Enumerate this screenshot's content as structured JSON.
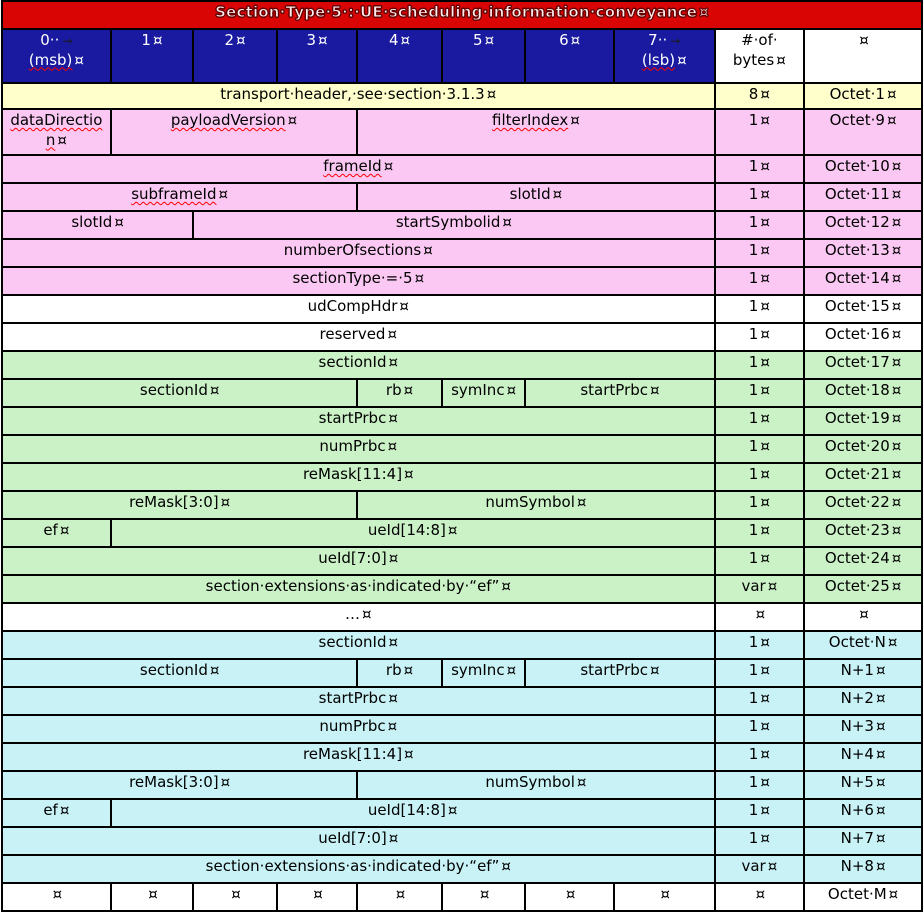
{
  "title": {
    "text": "Section·Type·5·:·UE·scheduling·information·conveyance",
    "marker": "¤"
  },
  "marks": {
    "cell_end": "¤",
    "tab": "→"
  },
  "colors": {
    "title_bg": "#d90404",
    "title_text": "#ffeeee",
    "title_stroke": "#640000",
    "header_bg": "#1a1aa0",
    "header_text": "#ffffff",
    "yellow": "#ffffcc",
    "pink": "#fac8f3",
    "green": "#cbf2c6",
    "cyan": "#c8f2f6",
    "white": "#ffffff",
    "border": "#000000",
    "text": "#000000",
    "squiggle": "#ff0000"
  },
  "columns": {
    "bit_headers": [
      {
        "top": "0··",
        "tab": true,
        "bottom": "(msb)",
        "sq_bottom": true
      },
      {
        "label": "1"
      },
      {
        "label": "2"
      },
      {
        "label": "3"
      },
      {
        "label": "4"
      },
      {
        "label": "5"
      },
      {
        "label": "6"
      },
      {
        "top": "7··",
        "tab": true,
        "bottom": "(lsb)",
        "sq_bottom": true
      }
    ],
    "bytes_header": {
      "line1": "#·of·",
      "line2": "bytes"
    },
    "octet_header": {
      "label": ""
    }
  },
  "rows": [
    {
      "bg": "yellow",
      "h": 26,
      "cells": [
        {
          "w": "transport·header,·see·section·3.1.3",
          "span": 8
        }
      ],
      "bytes": "8",
      "octet": "Octet·1"
    },
    {
      "bg": "pink",
      "h": 46,
      "cells": [
        {
          "w": "dataDirection",
          "sq": true,
          "span": 1
        },
        {
          "w": "payloadVersion",
          "sq": true,
          "span": 3
        },
        {
          "w": "filterIndex",
          "sq": true,
          "span": 4
        }
      ],
      "bytes": "1",
      "octet": "Octet·9"
    },
    {
      "bg": "pink",
      "cells": [
        {
          "w": "frameId",
          "sq": true,
          "span": 8
        }
      ],
      "bytes": "1",
      "octet": "Octet·10"
    },
    {
      "bg": "pink",
      "cells": [
        {
          "w": "subframeId",
          "sq": true,
          "span": 4
        },
        {
          "w": "slotId",
          "span": 4
        }
      ],
      "bytes": "1",
      "octet": "Octet·11"
    },
    {
      "bg": "pink",
      "cells": [
        {
          "w": "slotId",
          "span": 2
        },
        {
          "w": "startSymbolid",
          "span": 6
        }
      ],
      "bytes": "1",
      "octet": "Octet·12"
    },
    {
      "bg": "pink",
      "cells": [
        {
          "w": "numberOfsections",
          "span": 8
        }
      ],
      "bytes": "1",
      "octet": "Octet·13"
    },
    {
      "bg": "pink",
      "cells": [
        {
          "w": "sectionType·=·5",
          "span": 8
        }
      ],
      "bytes": "1",
      "octet": "Octet·14"
    },
    {
      "bg": "white",
      "cells": [
        {
          "w": "udCompHdr",
          "span": 8
        }
      ],
      "bytes": "1",
      "octet": "Octet·15"
    },
    {
      "bg": "white",
      "cells": [
        {
          "w": "reserved",
          "span": 8
        }
      ],
      "bytes": "1",
      "octet": "Octet·16"
    },
    {
      "bg": "green",
      "cells": [
        {
          "w": "sectionId",
          "span": 8
        }
      ],
      "bytes": "1",
      "octet": "Octet·17"
    },
    {
      "bg": "green",
      "cells": [
        {
          "w": "sectionId",
          "span": 4
        },
        {
          "w": "rb",
          "span": 1
        },
        {
          "w": "symInc",
          "span": 1
        },
        {
          "w": "startPrbc",
          "span": 2
        }
      ],
      "bytes": "1",
      "octet": "Octet·18"
    },
    {
      "bg": "green",
      "cells": [
        {
          "w": "startPrbc",
          "span": 8
        }
      ],
      "bytes": "1",
      "octet": "Octet·19"
    },
    {
      "bg": "green",
      "cells": [
        {
          "w": "numPrbc",
          "span": 8
        }
      ],
      "bytes": "1",
      "octet": "Octet·20"
    },
    {
      "bg": "green",
      "cells": [
        {
          "w": "reMask[11:4]",
          "span": 8
        }
      ],
      "bytes": "1",
      "octet": "Octet·21"
    },
    {
      "bg": "green",
      "cells": [
        {
          "w": "reMask[3:0]",
          "span": 4
        },
        {
          "w": "numSymbol",
          "span": 4
        }
      ],
      "bytes": "1",
      "octet": "Octet·22"
    },
    {
      "bg": "green",
      "cells": [
        {
          "w": "ef",
          "span": 1
        },
        {
          "w": "ueId[14:8]",
          "span": 7
        }
      ],
      "bytes": "1",
      "octet": "Octet·23"
    },
    {
      "bg": "green",
      "cells": [
        {
          "w": "ueId[7:0]",
          "span": 8
        }
      ],
      "bytes": "1",
      "octet": "Octet·24"
    },
    {
      "bg": "green",
      "cells": [
        {
          "w": "section·extensions·as·indicated·by·“ef”",
          "span": 8
        }
      ],
      "bytes": "var",
      "octet": "Octet·25"
    },
    {
      "bg": "white",
      "cells": [
        {
          "w": "…",
          "span": 8
        }
      ],
      "bytes": "",
      "octet": ""
    },
    {
      "bg": "cyan",
      "cells": [
        {
          "w": "sectionId",
          "span": 8
        }
      ],
      "bytes": "1",
      "octet": "Octet·N"
    },
    {
      "bg": "cyan",
      "cells": [
        {
          "w": "sectionId",
          "span": 4
        },
        {
          "w": "rb",
          "span": 1
        },
        {
          "w": "symInc",
          "span": 1
        },
        {
          "w": "startPrbc",
          "span": 2
        }
      ],
      "bytes": "1",
      "octet": "N+1"
    },
    {
      "bg": "cyan",
      "cells": [
        {
          "w": "startPrbc",
          "span": 8
        }
      ],
      "bytes": "1",
      "octet": "N+2"
    },
    {
      "bg": "cyan",
      "cells": [
        {
          "w": "numPrbc",
          "span": 8
        }
      ],
      "bytes": "1",
      "octet": "N+3"
    },
    {
      "bg": "cyan",
      "cells": [
        {
          "w": "reMask[11:4]",
          "span": 8
        }
      ],
      "bytes": "1",
      "octet": "N+4"
    },
    {
      "bg": "cyan",
      "cells": [
        {
          "w": "reMask[3:0]",
          "span": 4
        },
        {
          "w": "numSymbol",
          "span": 4
        }
      ],
      "bytes": "1",
      "octet": "N+5"
    },
    {
      "bg": "cyan",
      "cells": [
        {
          "w": "ef",
          "span": 1
        },
        {
          "w": "ueId[14:8]",
          "span": 7
        }
      ],
      "bytes": "1",
      "octet": "N+6"
    },
    {
      "bg": "cyan",
      "cells": [
        {
          "w": "ueId[7:0]",
          "span": 8
        }
      ],
      "bytes": "1",
      "octet": "N+7"
    },
    {
      "bg": "cyan",
      "cells": [
        {
          "w": "section·extensions·as·indicated·by·“ef”",
          "span": 8
        }
      ],
      "bytes": "var",
      "octet": "N+8"
    },
    {
      "bg": "white",
      "cells": [
        {
          "w": "",
          "span": 1
        },
        {
          "w": "",
          "span": 1
        },
        {
          "w": "",
          "span": 1
        },
        {
          "w": "",
          "span": 1
        },
        {
          "w": "",
          "span": 1
        },
        {
          "w": "",
          "span": 1
        },
        {
          "w": "",
          "span": 1
        },
        {
          "w": "",
          "span": 1
        }
      ],
      "bytes": "",
      "octet": "Octet·M"
    }
  ]
}
